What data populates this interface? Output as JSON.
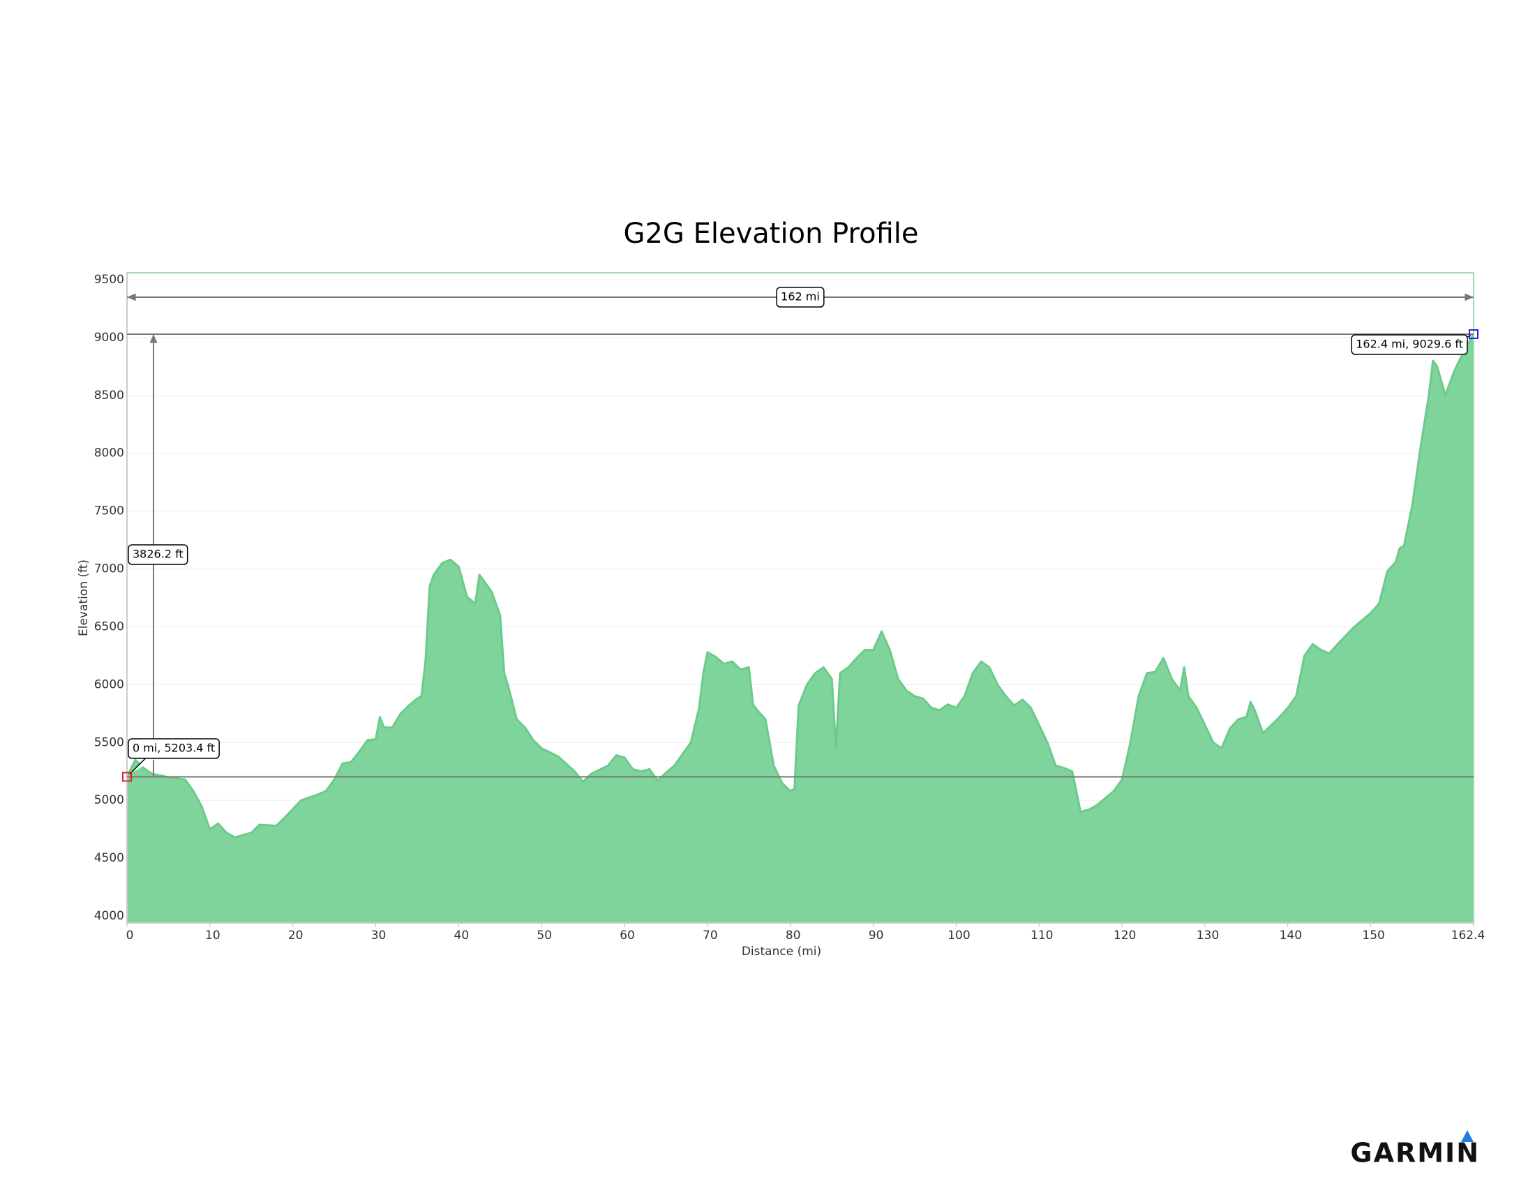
{
  "chart_data": {
    "type": "area",
    "title": "G2G Elevation Profile",
    "x_label": "Distance   (mi)",
    "y_label": "Elevation (ft)",
    "x": [
      0,
      1,
      2,
      3,
      5,
      7,
      8,
      9,
      10,
      11,
      12,
      13,
      14,
      15,
      16,
      18,
      19,
      21,
      23,
      24,
      25,
      26,
      27,
      28,
      29,
      30,
      30.5,
      31,
      32,
      33,
      34,
      35,
      35.5,
      36,
      36.5,
      37,
      38,
      39,
      40,
      41,
      42,
      42.5,
      43,
      44,
      45,
      45.5,
      46,
      47,
      48,
      49,
      50,
      52,
      54,
      55,
      56,
      58,
      59,
      60,
      61,
      62,
      63,
      64,
      65,
      66,
      67,
      68,
      69,
      69.5,
      70,
      71,
      72,
      73,
      74,
      75,
      75.5,
      76,
      77,
      78,
      79,
      80,
      80.5,
      81,
      82,
      83,
      84,
      85,
      85.5,
      86,
      87,
      88,
      89,
      90,
      91,
      92,
      93,
      94,
      95,
      96,
      97,
      98,
      99,
      100,
      101,
      102,
      103,
      104,
      105,
      106,
      107,
      108,
      109,
      110,
      111,
      112,
      113,
      114,
      115,
      116,
      117,
      118,
      119,
      120,
      121,
      122,
      123,
      124,
      125,
      126,
      127,
      127.5,
      128,
      129,
      130,
      131,
      132,
      133,
      134,
      135,
      135.5,
      136,
      137,
      138,
      139,
      140,
      141,
      142,
      143,
      144,
      145,
      146,
      148,
      150,
      151,
      152,
      153,
      153.5,
      154,
      155,
      156,
      157,
      157.5,
      158,
      159,
      160,
      161,
      162.4
    ],
    "values": [
      5203.4,
      5350,
      5280,
      5230,
      5200,
      5180,
      5080,
      4950,
      4750,
      4800,
      4720,
      4680,
      4700,
      4720,
      4790,
      4780,
      4850,
      5000,
      5050,
      5080,
      5180,
      5320,
      5330,
      5420,
      5520,
      5530,
      5720,
      5630,
      5630,
      5750,
      5820,
      5880,
      5900,
      6200,
      6850,
      6950,
      7050,
      7080,
      7020,
      6760,
      6700,
      6950,
      6900,
      6800,
      6600,
      6100,
      5980,
      5700,
      5630,
      5520,
      5450,
      5380,
      5250,
      5160,
      5230,
      5300,
      5390,
      5370,
      5270,
      5250,
      5270,
      5170,
      5240,
      5300,
      5400,
      5500,
      5800,
      6100,
      6280,
      6240,
      6180,
      6200,
      6130,
      6150,
      5830,
      5780,
      5700,
      5300,
      5150,
      5080,
      5100,
      5820,
      6000,
      6100,
      6150,
      6050,
      5450,
      6100,
      6150,
      6230,
      6300,
      6300,
      6460,
      6300,
      6050,
      5950,
      5900,
      5880,
      5800,
      5780,
      5830,
      5800,
      5900,
      6100,
      6200,
      6150,
      6000,
      5900,
      5820,
      5870,
      5800,
      5650,
      5500,
      5300,
      5280,
      5250,
      4900,
      4920,
      4960,
      5020,
      5080,
      5180,
      5500,
      5900,
      6100,
      6110,
      6230,
      6050,
      5950,
      6150,
      5900,
      5800,
      5650,
      5500,
      5450,
      5620,
      5700,
      5720,
      5850,
      5780,
      5580,
      5650,
      5720,
      5800,
      5900,
      6250,
      6350,
      6300,
      6270,
      6350,
      6500,
      6620,
      6700,
      6980,
      7060,
      7180,
      7200,
      7550,
      8050,
      8500,
      8800,
      8750,
      8500,
      8700,
      8850,
      9029.6
    ],
    "color": "#7fd49b",
    "xlim": [
      0,
      162.4
    ],
    "xticks": [
      0,
      10,
      20,
      30,
      40,
      50,
      60,
      70,
      80,
      90,
      100,
      110,
      120,
      130,
      140,
      150,
      162.4
    ],
    "ylim": [
      3940,
      9560
    ],
    "yticks": [
      4000,
      4500,
      5000,
      5500,
      6000,
      6500,
      7000,
      7500,
      8000,
      8500,
      9000,
      9500
    ],
    "grid": true,
    "annotations": [
      "162 mi",
      "3826.2 ft",
      "0 mi, 5203.4 ft",
      "162.4 mi, 9029.6 ft"
    ]
  },
  "logo": "GARMIN"
}
